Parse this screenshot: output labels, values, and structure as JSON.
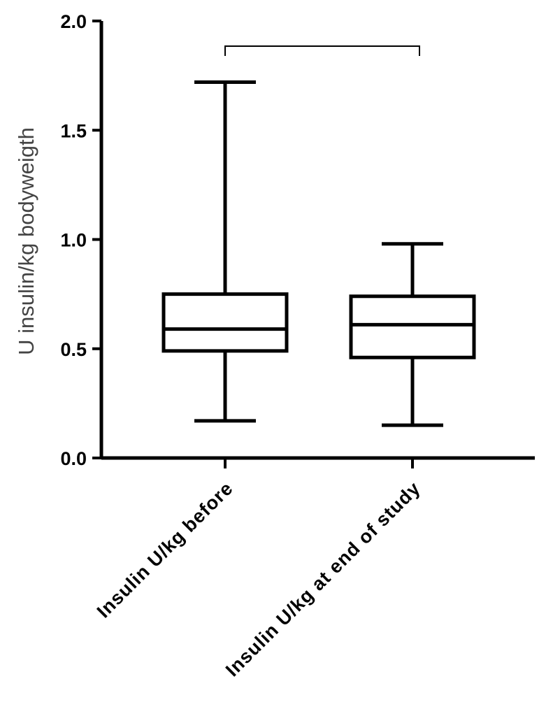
{
  "chart_data": {
    "type": "box",
    "title": "",
    "xlabel": "",
    "ylabel": "U insulin/kg bodyweigth",
    "ylim": [
      0.0,
      2.0
    ],
    "yticks": [
      "0.0",
      "0.5",
      "1.0",
      "1.5",
      "2.0"
    ],
    "grid": false,
    "categories": [
      "Insulin U/kg before",
      "Insulin U/kg at end of study"
    ],
    "boxes": [
      {
        "category": "Insulin U/kg before",
        "min": 0.17,
        "q1": 0.49,
        "median": 0.59,
        "q3": 0.75,
        "max": 1.72
      },
      {
        "category": "Insulin U/kg at end of study",
        "min": 0.15,
        "q1": 0.46,
        "median": 0.61,
        "q3": 0.74,
        "max": 0.98
      }
    ],
    "comparison_bracket": {
      "between": [
        "Insulin U/kg before",
        "Insulin U/kg at end of study"
      ],
      "label": ""
    }
  }
}
